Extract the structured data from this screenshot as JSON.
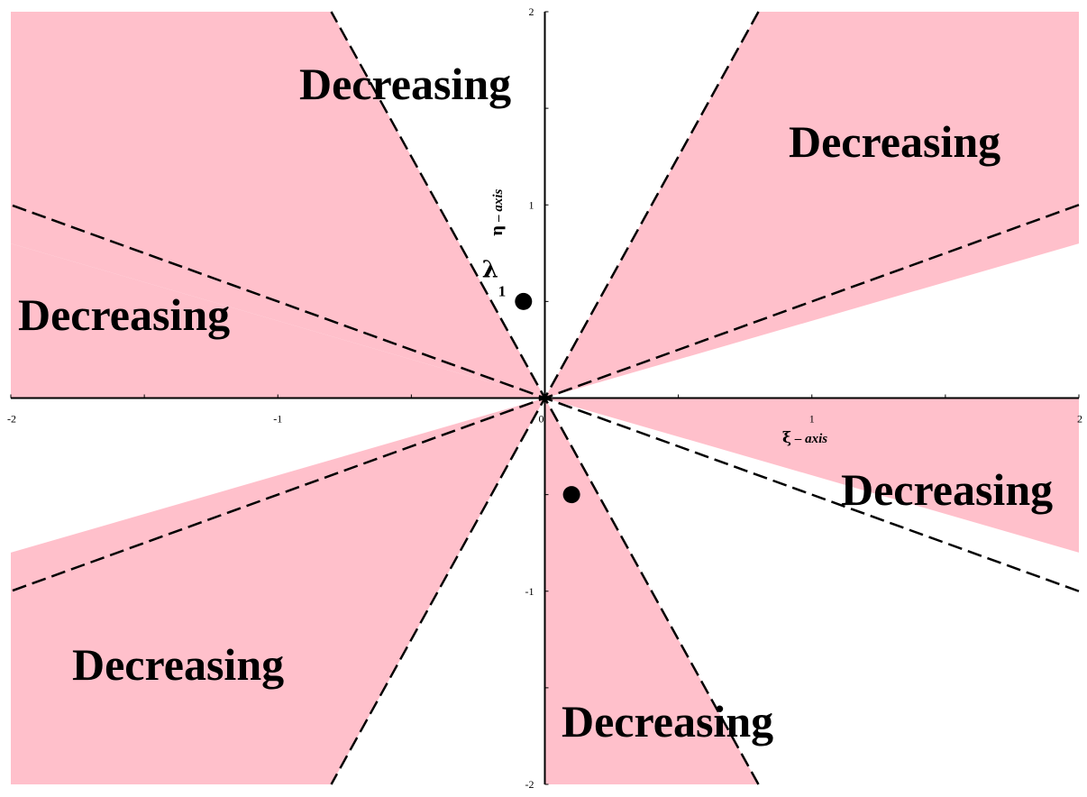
{
  "chart_data": {
    "type": "scatter",
    "xlim": [
      -2,
      2
    ],
    "ylim": [
      -2,
      2
    ],
    "x_axis_label": {
      "symbol": "ξ",
      "word": " – axis"
    },
    "y_axis_label": {
      "symbol": "η",
      "word": " – axis"
    },
    "x_ticks": [
      {
        "value": -2,
        "label": "-2"
      },
      {
        "value": -1,
        "label": "-1"
      },
      {
        "value": 0,
        "label": "0"
      },
      {
        "value": 1,
        "label": "1"
      },
      {
        "value": 2,
        "label": "2"
      }
    ],
    "y_ticks": [
      {
        "value": 2,
        "label": "2"
      },
      {
        "value": 1,
        "label": "1"
      },
      {
        "value": -1,
        "label": "-1"
      },
      {
        "value": -2,
        "label": "-2"
      }
    ],
    "boundary_line_slopes": [
      0.5,
      -0.5,
      -2.5,
      2.5
    ],
    "shaded_region_color": "#ffc0cb",
    "regions": [
      {
        "label": "Decreasing",
        "angle_from_deg": 21.8,
        "angle_to_deg": 68.2
      },
      {
        "label": "Decreasing",
        "angle_from_deg": 111.8,
        "angle_to_deg": 158.2
      },
      {
        "label": "Decreasing",
        "angle_from_deg": 158.2,
        "angle_to_deg": 180
      },
      {
        "label": "Decreasing",
        "angle_from_deg": 201.8,
        "angle_to_deg": 248.2
      },
      {
        "label": "Decreasing",
        "angle_from_deg": 270,
        "angle_to_deg": 291.8
      },
      {
        "label": "Decreasing",
        "angle_from_deg": 338.2,
        "angle_to_deg": 360
      }
    ],
    "points": [
      {
        "x": -0.08,
        "y": 0.5,
        "label": "λ",
        "subscript": "1"
      },
      {
        "x": 0.1,
        "y": -0.5,
        "label": "",
        "subscript": ""
      }
    ]
  }
}
